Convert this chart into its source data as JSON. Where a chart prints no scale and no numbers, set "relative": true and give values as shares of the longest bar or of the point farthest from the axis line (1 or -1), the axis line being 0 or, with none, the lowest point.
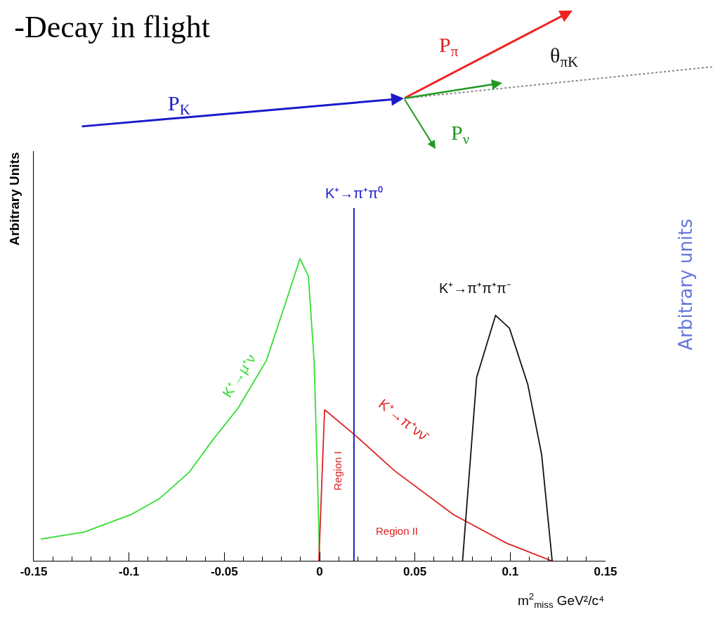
{
  "chart_data": {
    "type": "line",
    "title": "-Decay in flight",
    "xlabel": "m$^{2}$$_{miss}$ GeV²/c⁴",
    "ylabel": "Arbitrary Units",
    "relative": true,
    "xlim": [
      -0.15,
      0.15
    ],
    "xticks": [
      -0.15,
      -0.1,
      -0.05,
      0,
      0.05,
      0.1,
      0.15
    ],
    "legend": false,
    "marker": "none",
    "line_style": "solid",
    "series": [
      {
        "name": "K⁺→μ⁺ν",
        "color": "#33dd33",
        "x": [
          -0.1463,
          -0.1235,
          -0.0989,
          -0.0842,
          -0.0684,
          -0.0563,
          -0.0426,
          -0.0279,
          -0.0169,
          -0.0103,
          -0.0059,
          -0.0029,
          -0.0011,
          0
        ],
        "values": [
          0.072,
          0.095,
          0.153,
          0.205,
          0.293,
          0.398,
          0.507,
          0.663,
          0.872,
          1.0,
          0.942,
          0.663,
          0.274,
          0
        ]
      },
      {
        "name": "K⁺→π⁺νν̄",
        "color": "#dd2222",
        "x": [
          -0.0004,
          0.0026,
          0.018,
          0.0393,
          0.0702,
          0.0982,
          0.1217
        ],
        "values": [
          0,
          0.5,
          0.419,
          0.298,
          0.153,
          0.058,
          0
        ]
      },
      {
        "name": "K⁺→π⁺π⁺π⁻",
        "color": "#111111",
        "x": [
          0.075,
          0.0824,
          0.0923,
          0.0996,
          0.1092,
          0.1165,
          0.122
        ],
        "values": [
          0,
          0.607,
          0.812,
          0.77,
          0.584,
          0.351,
          0
        ]
      }
    ],
    "ref_lines": [
      {
        "axis": "x",
        "value": 0.018,
        "label": "K⁺→π⁺π⁰",
        "color": "#1a1acc",
        "line_style": "solid"
      }
    ],
    "annotations": [
      "Region I",
      "Region II",
      "P$_{K}$",
      "P$_{π}$",
      "P$_{ν}$",
      "θ$_{πK}$",
      "Arbitrary units"
    ]
  }
}
